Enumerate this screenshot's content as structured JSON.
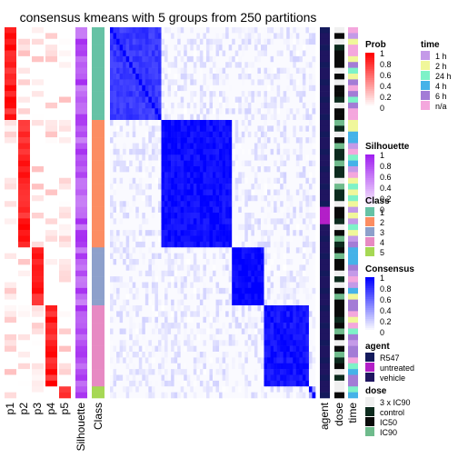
{
  "chart_data": {
    "type": "heatmap",
    "title": "consensus kmeans with 5 groups from 250 partitions",
    "n_samples": 64,
    "groups": [
      {
        "class": 1,
        "size": 16
      },
      {
        "class": 2,
        "size": 22
      },
      {
        "class": 3,
        "size": 10
      },
      {
        "class": 4,
        "size": 14
      },
      {
        "class": 5,
        "size": 2
      }
    ],
    "within_group_consensus": [
      0.78,
      0.95,
      0.97,
      0.92,
      0.4
    ],
    "prob_columns": [
      "p1",
      "p2",
      "p3",
      "p4",
      "p5"
    ],
    "silhouette_label": "Silhouette",
    "class_label": "Class",
    "annotation_columns": [
      "agent",
      "dose",
      "time"
    ],
    "legends": {
      "prob": {
        "title": "Prob",
        "ticks": [
          "1",
          "0.8",
          "0.6",
          "0.4",
          "0.2",
          "0"
        ],
        "low": "#ffffff",
        "high": "#ff0000"
      },
      "silhouette": {
        "title": "Silhouette",
        "ticks": [
          "1",
          "0.8",
          "0.6",
          "0.4",
          "0.2",
          "0"
        ],
        "low": "#ffffff",
        "high": "#a020f0"
      },
      "class": {
        "title": "Class",
        "items": [
          {
            "label": "1",
            "color": "#66c2a5"
          },
          {
            "label": "2",
            "color": "#fc8d62"
          },
          {
            "label": "3",
            "color": "#8da0cb"
          },
          {
            "label": "4",
            "color": "#e78ac3"
          },
          {
            "label": "5",
            "color": "#a6d854"
          }
        ]
      },
      "consensus": {
        "title": "Consensus",
        "ticks": [
          "1",
          "0.8",
          "0.6",
          "0.4",
          "0.2",
          "0"
        ],
        "low": "#ffffff",
        "high": "#0000ff"
      },
      "agent": {
        "title": "agent",
        "items": [
          {
            "label": "R547",
            "color": "#141a5c"
          },
          {
            "label": "untreated",
            "color": "#b31fc8"
          },
          {
            "label": "vehicle",
            "color": "#1f1560"
          }
        ]
      },
      "dose": {
        "title": "dose",
        "items": [
          {
            "label": "3 x IC90",
            "color": "#f0f0f0"
          },
          {
            "label": "control",
            "color": "#0d2b1e"
          },
          {
            "label": "IC50",
            "color": "#0a0a0a"
          },
          {
            "label": "IC90",
            "color": "#6fbb8c"
          }
        ]
      },
      "time": {
        "title": "time",
        "items": [
          {
            "label": "1 h",
            "color": "#c49ae8"
          },
          {
            "label": "2 h",
            "color": "#f0f79a"
          },
          {
            "label": "24 h",
            "color": "#7ef2c8"
          },
          {
            "label": "4 h",
            "color": "#45b2e8"
          },
          {
            "label": "6 h",
            "color": "#a37cd6"
          },
          {
            "label": "n/a",
            "color": "#f4a7dd"
          }
        ]
      }
    }
  }
}
